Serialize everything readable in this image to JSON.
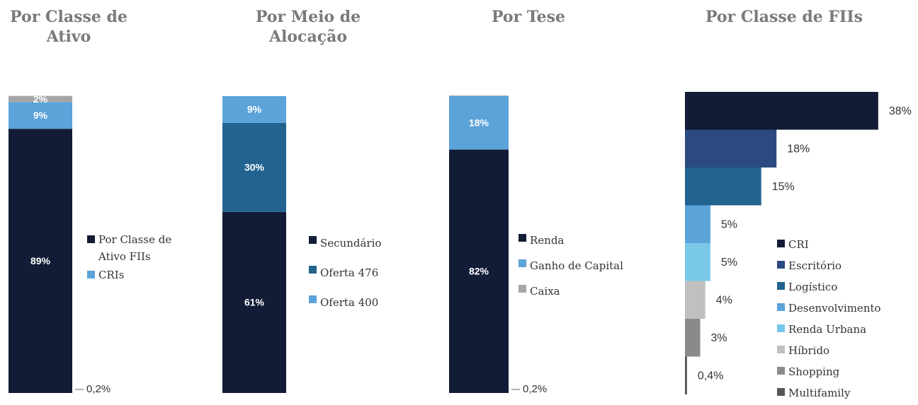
{
  "chart_data": [
    {
      "type": "bar",
      "stacked": true,
      "title": "Por Classe de Ativo",
      "series": [
        {
          "name": "Por Classe de Ativo FIIs",
          "color": "#131c36",
          "values": [
            89
          ],
          "value_labels": [
            "89%"
          ]
        },
        {
          "name": "CRIs",
          "color": "#5ba3d9",
          "values": [
            9
          ],
          "value_labels": [
            "9%"
          ]
        },
        {
          "color": "#a6a6a6",
          "values": [
            2
          ],
          "value_labels": [
            "2%"
          ]
        },
        {
          "color": "#d9d9d9",
          "values": [
            0.2
          ],
          "value_labels": [
            "0,2%"
          ]
        }
      ]
    },
    {
      "type": "bar",
      "stacked": true,
      "title": "Por Meio de Alocação",
      "series": [
        {
          "name": "Secundário",
          "color": "#131c36",
          "values": [
            61
          ],
          "value_labels": [
            "61%"
          ]
        },
        {
          "name": "Oferta 476",
          "color": "#22638f",
          "values": [
            30
          ],
          "value_labels": [
            "30%"
          ]
        },
        {
          "name": "Oferta 400",
          "color": "#5ba3d9",
          "values": [
            9
          ],
          "value_labels": [
            "9%"
          ]
        }
      ]
    },
    {
      "type": "bar",
      "stacked": true,
      "title": "Por Tese",
      "series": [
        {
          "name": "Renda",
          "color": "#131c36",
          "values": [
            82
          ],
          "value_labels": [
            "82%"
          ]
        },
        {
          "name": "Ganho de Capital",
          "color": "#5ba3d9",
          "values": [
            18
          ],
          "value_labels": [
            "18%"
          ]
        },
        {
          "name": "Caixa",
          "color": "#a6a6a6",
          "values": [
            0.2
          ],
          "value_labels": [
            "0,2%"
          ]
        }
      ]
    },
    {
      "type": "hbar",
      "title": "Por Classe de FIIs",
      "categories": [
        "CRI",
        "Escritório",
        "Logístico",
        "Desenvolvimento",
        "Renda Urbana",
        "Híbrido",
        "Shopping",
        "Multifamily"
      ],
      "values": [
        38,
        18,
        15,
        5,
        5,
        4,
        3,
        0.4
      ],
      "value_labels": [
        "38%",
        "18%",
        "15%",
        "5%",
        "5%",
        "4%",
        "3%",
        "0,4%"
      ],
      "colors": [
        "#131c36",
        "#2a4a80",
        "#22638f",
        "#5ba3d9",
        "#7ac8e8",
        "#c0c0c0",
        "#8a8a8a",
        "#555555"
      ]
    }
  ]
}
